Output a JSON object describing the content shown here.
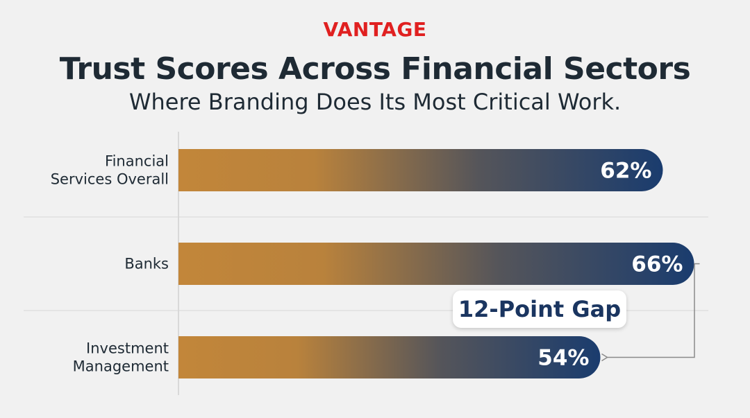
{
  "header": {
    "brand": "VANTAGE",
    "title": "Trust Scores Across Financial Sectors",
    "subtitle": "Where Branding Does Its Most Critical Work."
  },
  "annotation": {
    "label": "12-Point Gap"
  },
  "colors": {
    "brand": "#e02020",
    "bar_start": "#c2863a",
    "bar_end": "#1a3c6e",
    "text": "#1e2a34"
  },
  "chart_data": {
    "type": "bar",
    "orientation": "horizontal",
    "categories": [
      [
        "Financial",
        "Services Overall"
      ],
      [
        "Banks"
      ],
      [
        "Investment",
        "Management"
      ]
    ],
    "values": [
      62,
      66,
      54
    ],
    "value_labels": [
      "62%",
      "66%",
      "54%"
    ],
    "unit": "%",
    "title": "Trust Scores Across Financial Sectors",
    "subtitle": "Where Branding Does Its Most Critical Work.",
    "grid": true,
    "annotation": {
      "text": "12-Point Gap",
      "from_category": "Banks",
      "to_category": "Investment Management"
    }
  }
}
